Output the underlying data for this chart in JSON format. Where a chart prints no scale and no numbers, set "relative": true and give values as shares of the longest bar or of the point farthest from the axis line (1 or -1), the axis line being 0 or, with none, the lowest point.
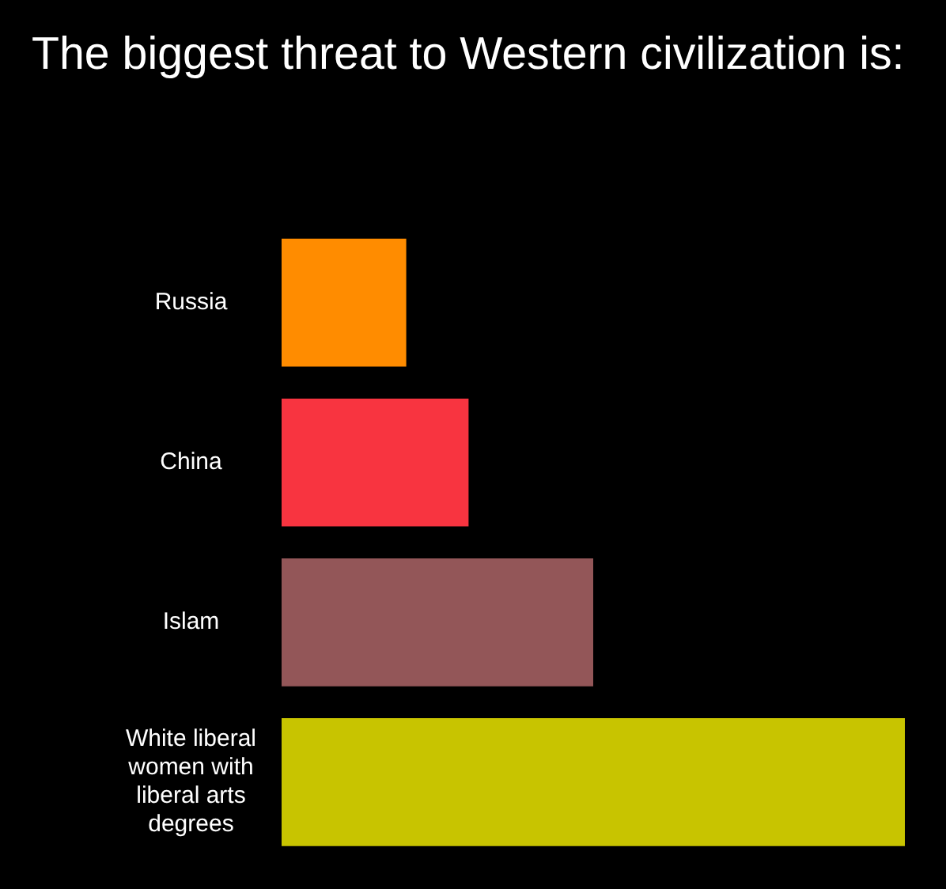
{
  "chart_data": {
    "type": "bar",
    "orientation": "horizontal",
    "relative": true,
    "title": "The biggest threat to Western civilization is:",
    "categories": [
      "Russia",
      "China",
      "Islam",
      "White liberal women with liberal arts degrees"
    ],
    "values": [
      0.2,
      0.3,
      0.5,
      1
    ],
    "colors": [
      "#ff8c00",
      "#f83440",
      "#935658",
      "#c8c400"
    ],
    "legend": false
  }
}
